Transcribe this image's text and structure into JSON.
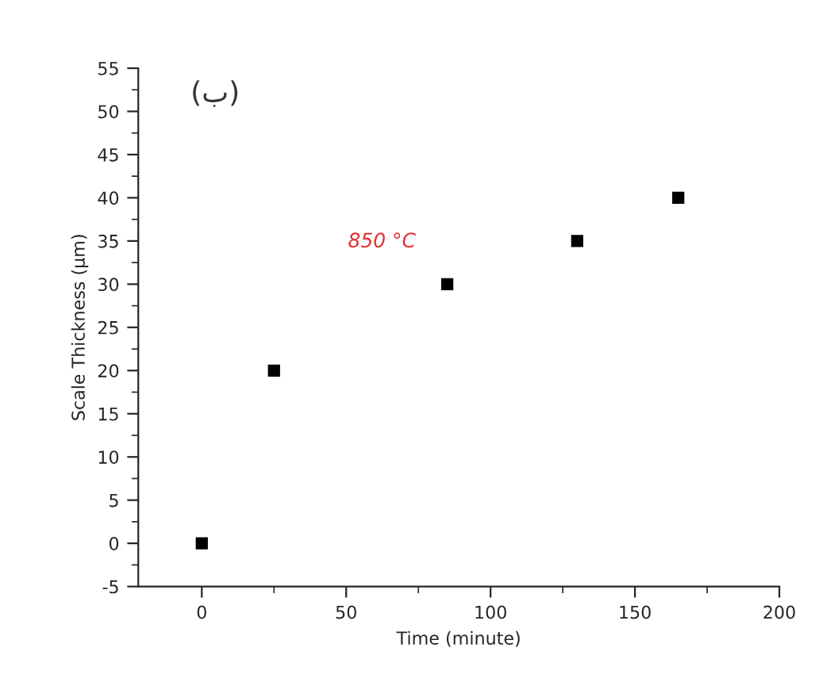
{
  "chart_data": {
    "type": "scatter",
    "xlabel": "Time (minute)",
    "ylabel": "Scale Thickness (μm)",
    "x": [
      0,
      25,
      85,
      130,
      165
    ],
    "series": [
      {
        "color": "#000000",
        "values": [
          0,
          20,
          30,
          35,
          40
        ]
      }
    ],
    "marker": "square",
    "xlim": [
      -22,
      200
    ],
    "xticks": [
      0,
      50,
      100,
      150,
      200
    ],
    "ylim": [
      -5,
      55
    ],
    "yticks": [
      -5,
      0,
      5,
      10,
      15,
      20,
      25,
      30,
      35,
      40,
      45,
      50,
      55
    ],
    "grid": false,
    "legend": false,
    "annotations": [
      "850 °C",
      "(ب)"
    ]
  }
}
